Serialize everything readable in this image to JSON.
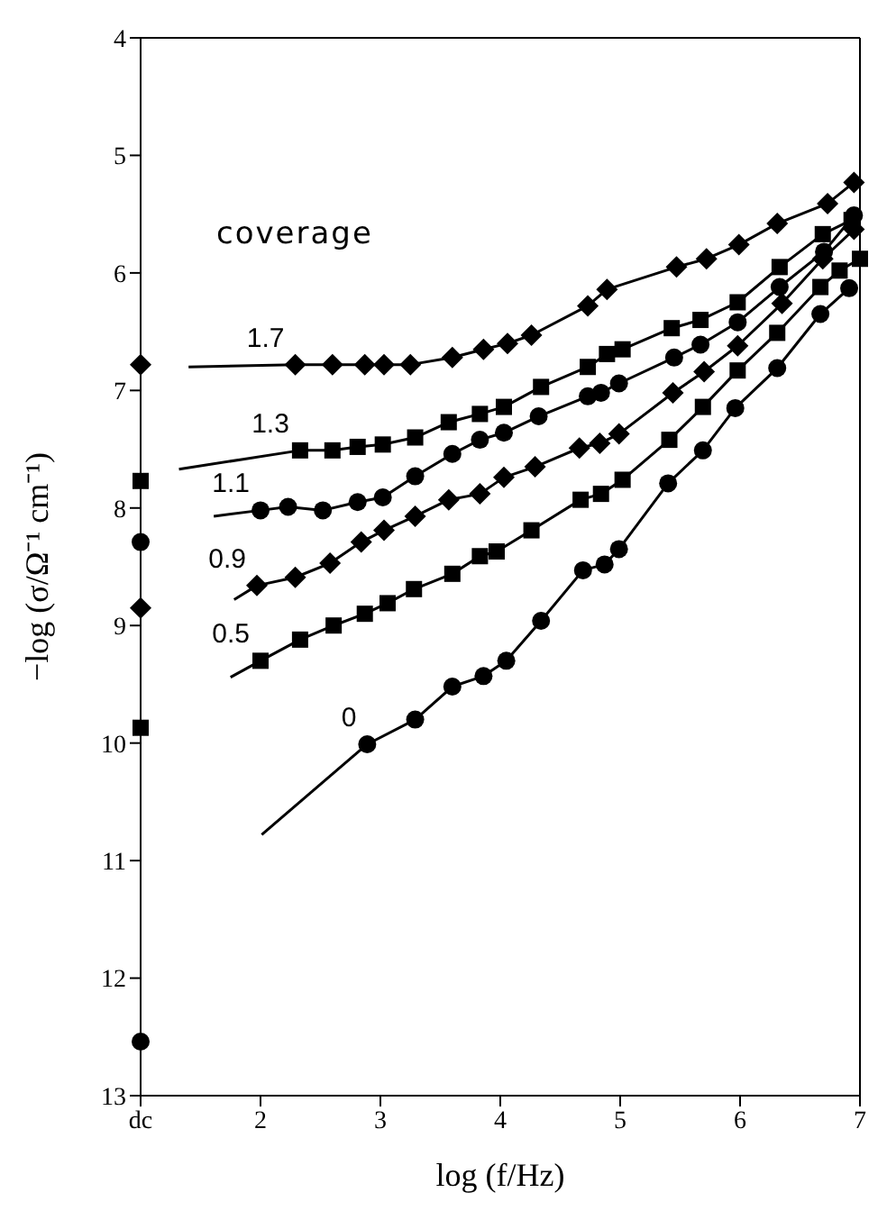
{
  "chart_data": {
    "type": "line",
    "xlabel": "log (f/Hz)",
    "ylabel": "−log (σ/Ω⁻¹ cm⁻¹)",
    "legend_title": "coverage",
    "xlim": [
      1,
      7
    ],
    "xticks": [
      {
        "value": 1,
        "label": "dc"
      },
      2,
      3,
      4,
      5,
      6,
      7
    ],
    "ylim": [
      13,
      4
    ],
    "yticks": [
      4,
      5,
      6,
      7,
      8,
      9,
      10,
      11,
      12,
      13
    ],
    "series": [
      {
        "name": "1.7",
        "color": "#000000",
        "marker": "diamond",
        "x": [
          2.29,
          2.6,
          2.87,
          3.03,
          3.25,
          3.6,
          3.86,
          4.06,
          4.26,
          4.73,
          4.89,
          5.47,
          5.72,
          5.99,
          6.31,
          6.73,
          6.95
        ],
        "values": [
          6.78,
          6.78,
          6.78,
          6.78,
          6.78,
          6.72,
          6.65,
          6.6,
          6.53,
          6.28,
          6.14,
          5.95,
          5.88,
          5.76,
          5.58,
          5.41,
          5.23
        ]
      },
      {
        "name": "1.3",
        "color": "#000000",
        "marker": "square",
        "x": [
          2.33,
          2.6,
          2.81,
          3.02,
          3.29,
          3.57,
          3.83,
          4.03,
          4.34,
          4.73,
          4.89,
          5.02,
          5.43,
          5.67,
          5.98,
          6.33,
          6.69,
          6.93
        ],
        "values": [
          7.51,
          7.51,
          7.48,
          7.46,
          7.4,
          7.27,
          7.2,
          7.14,
          6.97,
          6.8,
          6.69,
          6.65,
          6.47,
          6.4,
          6.25,
          5.95,
          5.67,
          5.55
        ]
      },
      {
        "name": "1.1",
        "color": "#000000",
        "marker": "circle",
        "x": [
          2,
          2.23,
          2.52,
          2.81,
          3.02,
          3.29,
          3.6,
          3.83,
          4.03,
          4.32,
          4.73,
          4.84,
          4.99,
          5.45,
          5.67,
          5.98,
          6.33,
          6.7,
          6.95
        ],
        "values": [
          8.02,
          7.99,
          8.02,
          7.95,
          7.91,
          7.73,
          7.54,
          7.42,
          7.36,
          7.22,
          7.05,
          7.02,
          6.94,
          6.72,
          6.61,
          6.42,
          6.12,
          5.82,
          5.51
        ]
      },
      {
        "name": "0.9",
        "color": "#000000",
        "marker": "diamond",
        "x": [
          1.97,
          2.29,
          2.58,
          2.84,
          3.03,
          3.29,
          3.57,
          3.83,
          4.03,
          4.29,
          4.66,
          4.83,
          4.99,
          5.44,
          5.7,
          5.98,
          6.35,
          6.69,
          6.95
        ],
        "values": [
          8.66,
          8.59,
          8.47,
          8.29,
          8.19,
          8.07,
          7.93,
          7.88,
          7.74,
          7.65,
          7.49,
          7.45,
          7.37,
          7.02,
          6.84,
          6.62,
          6.26,
          5.88,
          5.63
        ]
      },
      {
        "name": "0.5",
        "color": "#000000",
        "marker": "square",
        "x": [
          2,
          2.33,
          2.61,
          2.87,
          3.06,
          3.28,
          3.6,
          3.83,
          3.97,
          4.26,
          4.67,
          4.84,
          5.02,
          5.41,
          5.69,
          5.98,
          6.31,
          6.67,
          6.83,
          7
        ],
        "values": [
          9.3,
          9.12,
          9,
          8.9,
          8.81,
          8.69,
          8.56,
          8.41,
          8.37,
          8.19,
          7.93,
          7.88,
          7.76,
          7.42,
          7.14,
          6.83,
          6.51,
          6.12,
          5.98,
          5.88
        ]
      },
      {
        "name": "0",
        "color": "#000000",
        "marker": "circle",
        "x": [
          2.89,
          3.29,
          3.6,
          3.86,
          4.05,
          4.34,
          4.69,
          4.87,
          4.99,
          5.4,
          5.69,
          5.96,
          6.31,
          6.67,
          6.91
        ],
        "values": [
          10.01,
          9.8,
          9.52,
          9.43,
          9.3,
          8.96,
          8.53,
          8.48,
          8.35,
          7.79,
          7.51,
          7.15,
          6.81,
          6.35,
          6.13
        ]
      },
      {
        "color": "#000000",
        "marker": "none",
        "x": [
          1.4,
          2.29
        ],
        "values": [
          6.8,
          6.78
        ]
      },
      {
        "color": "#000000",
        "marker": "none",
        "x": [
          1.32,
          2.33
        ],
        "values": [
          7.67,
          7.51
        ]
      },
      {
        "color": "#000000",
        "marker": "none",
        "x": [
          1.61,
          2
        ],
        "values": [
          8.07,
          8.02
        ]
      },
      {
        "color": "#000000",
        "marker": "none",
        "x": [
          1.78,
          1.97
        ],
        "values": [
          8.78,
          8.66
        ]
      },
      {
        "color": "#000000",
        "marker": "none",
        "x": [
          1.75,
          2
        ],
        "values": [
          9.44,
          9.3
        ]
      },
      {
        "color": "#000000",
        "marker": "none",
        "x": [
          2.01,
          2.89
        ],
        "values": [
          10.78,
          10.01
        ]
      },
      {
        "type": "scatter",
        "color": "#000000",
        "marker": "diamond",
        "x": [
          1
        ],
        "values": [
          6.78
        ]
      },
      {
        "type": "scatter",
        "color": "#000000",
        "marker": "square",
        "x": [
          1
        ],
        "values": [
          7.77
        ]
      },
      {
        "type": "scatter",
        "color": "#000000",
        "marker": "circle",
        "x": [
          1
        ],
        "values": [
          8.29
        ]
      },
      {
        "type": "scatter",
        "color": "#000000",
        "marker": "diamond",
        "x": [
          1
        ],
        "values": [
          8.85
        ]
      },
      {
        "type": "scatter",
        "color": "#000000",
        "marker": "square",
        "x": [
          1
        ],
        "values": [
          9.87
        ]
      },
      {
        "type": "scatter",
        "color": "#000000",
        "marker": "circle",
        "x": [
          1
        ],
        "values": [
          12.54
        ]
      }
    ]
  }
}
